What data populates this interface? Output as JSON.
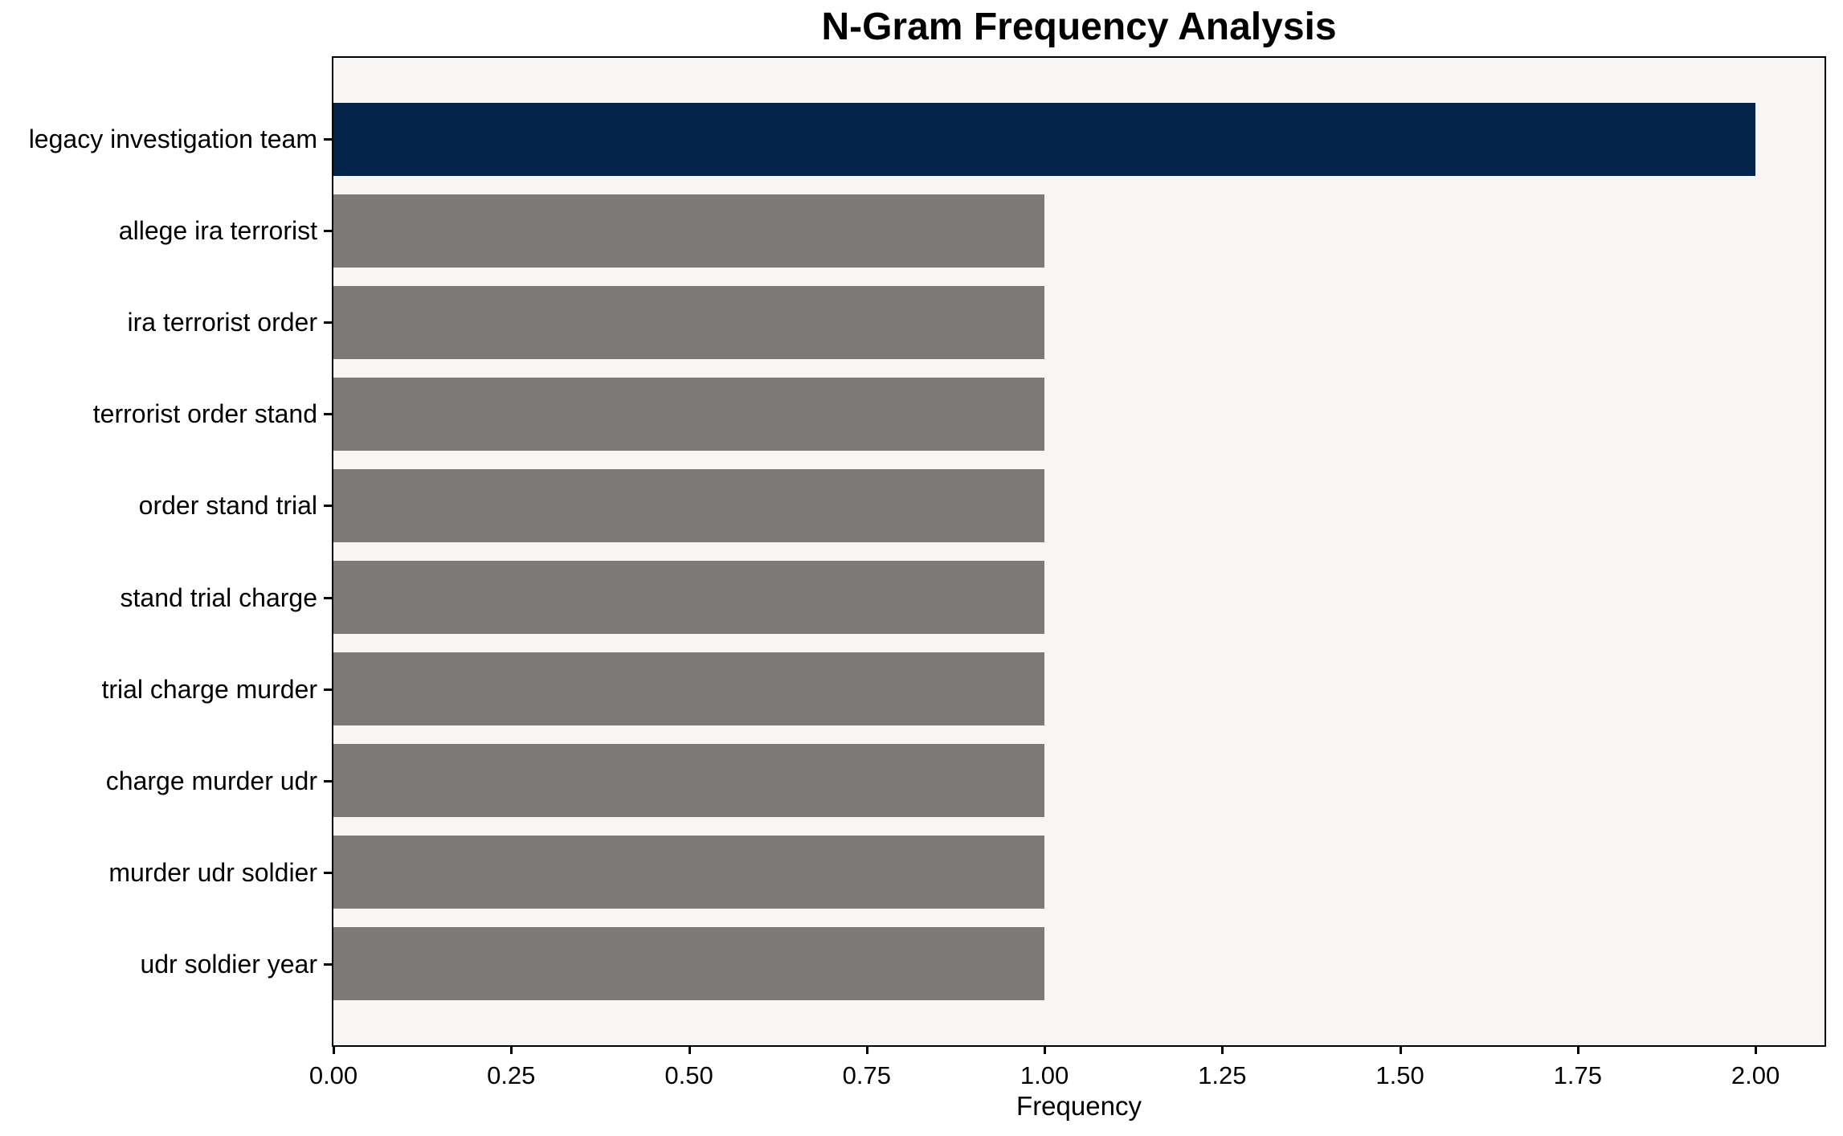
{
  "chart_data": {
    "type": "bar",
    "orientation": "horizontal",
    "title": "N-Gram Frequency Analysis",
    "xlabel": "Frequency",
    "ylabel": "",
    "categories": [
      "legacy investigation team",
      "allege ira terrorist",
      "ira terrorist order",
      "terrorist order stand",
      "order stand trial",
      "stand trial charge",
      "trial charge murder",
      "charge murder udr",
      "murder udr soldier",
      "udr soldier year"
    ],
    "values": [
      2.0,
      1.0,
      1.0,
      1.0,
      1.0,
      1.0,
      1.0,
      1.0,
      1.0,
      1.0
    ],
    "bar_colors": [
      "#042349",
      "#7b7a76",
      "#7b7a76",
      "#7b7a76",
      "#7b7a76",
      "#7b7a76",
      "#7b7a76",
      "#7b7a76",
      "#7b7a76",
      "#7b7a76"
    ],
    "xlim": [
      0,
      2.0971
    ],
    "xticks": [
      0,
      0.25,
      0.5,
      0.75,
      1.0,
      1.25,
      1.5,
      1.75,
      2.0
    ],
    "xtick_labels": [
      "0.00",
      "0.25",
      "0.50",
      "0.75",
      "1.00",
      "1.25",
      "1.50",
      "1.75",
      "2.00"
    ],
    "grid": false,
    "legend_position": "none",
    "colors": {
      "highlight_bar": "#042349",
      "default_bar": "#7b7a76",
      "plot_background": "#f7f6f5",
      "figure_background": "#ffffff",
      "axis_text": "#000000",
      "spine": "#000000"
    }
  }
}
